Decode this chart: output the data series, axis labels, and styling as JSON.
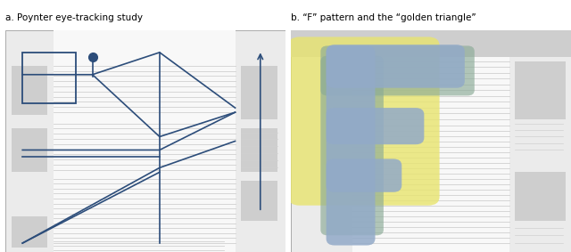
{
  "title_a": "a. Poynter eye-tracking study",
  "title_b": "b. “F” pattern and the “golden triangle”",
  "bg_color": "#ffffff",
  "panel_bg": "#ebebeb",
  "content_line_color": "#d0d0d0",
  "dark_blue": "#2c4d7a",
  "gray_box": "#cecece",
  "yellow_color": "#e8e46e",
  "blue_overlay": "#92aac8",
  "green_overlay": "#8aaa96",
  "white_panel": "#f8f8f8"
}
